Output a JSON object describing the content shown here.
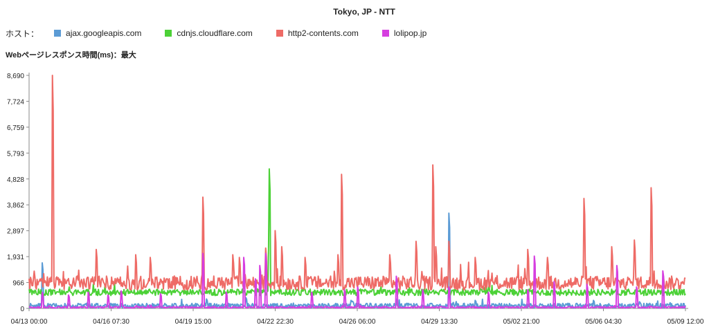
{
  "chart_data": {
    "type": "line",
    "title": "Tokyo, JP - NTT",
    "legend_prefix": "ホスト：",
    "ylabel": "Webページレスポンス時間(ms)：最大",
    "y_ticks": [
      "0",
      "966",
      "1,931",
      "2,897",
      "3,862",
      "4,828",
      "5,793",
      "6,759",
      "7,724",
      "8,690"
    ],
    "ylim": [
      0,
      8690
    ],
    "x_ticks": [
      "04/13 00:00",
      "04/16 07:30",
      "04/19 15:00",
      "04/22 22:30",
      "04/26 06:00",
      "04/29 13:30",
      "05/02 21:00",
      "05/06 04:30",
      "05/09 12:00"
    ],
    "grid": false,
    "legend_position": "top-left",
    "series": [
      {
        "name": "ajax.googleapis.com",
        "color": "#5b9bd5",
        "baseline": 100,
        "noise": 90,
        "spikes": [
          [
            0.02,
            1700
          ],
          [
            0.27,
            350
          ],
          [
            0.33,
            400
          ],
          [
            0.49,
            300
          ],
          [
            0.64,
            3550
          ],
          [
            0.68,
            300
          ],
          [
            0.86,
            300
          ],
          [
            0.93,
            250
          ]
        ]
      },
      {
        "name": "cdnjs.cloudflare.com",
        "color": "#4cd137",
        "baseline": 600,
        "noise": 120,
        "spikes": [
          [
            0.366,
            5200
          ],
          [
            0.365,
            2300
          ]
        ]
      },
      {
        "name": "http2-contents.com",
        "color": "#ee6b66",
        "baseline": 950,
        "noise": 260,
        "spikes": [
          [
            0.036,
            8690
          ],
          [
            0.102,
            2200
          ],
          [
            0.162,
            2000
          ],
          [
            0.185,
            1900
          ],
          [
            0.265,
            4150
          ],
          [
            0.31,
            2000
          ],
          [
            0.32,
            1900
          ],
          [
            0.36,
            2250
          ],
          [
            0.375,
            2900
          ],
          [
            0.385,
            2300
          ],
          [
            0.42,
            1900
          ],
          [
            0.47,
            2000
          ],
          [
            0.476,
            5000
          ],
          [
            0.55,
            2000
          ],
          [
            0.59,
            2500
          ],
          [
            0.62,
            2300
          ],
          [
            0.6155,
            5350
          ],
          [
            0.64,
            2500
          ],
          [
            0.68,
            1900
          ],
          [
            0.76,
            2200
          ],
          [
            0.79,
            1900
          ],
          [
            0.845,
            4100
          ],
          [
            0.888,
            2300
          ],
          [
            0.922,
            2550
          ],
          [
            0.948,
            4500
          ]
        ]
      },
      {
        "name": "lolipop.jp",
        "color": "#d63ee0",
        "baseline": 40,
        "noise": 30,
        "spikes": [
          [
            0.02,
            600
          ],
          [
            0.06,
            500
          ],
          [
            0.09,
            600
          ],
          [
            0.12,
            500
          ],
          [
            0.14,
            650
          ],
          [
            0.2,
            550
          ],
          [
            0.265,
            2050
          ],
          [
            0.3,
            600
          ],
          [
            0.327,
            1900
          ],
          [
            0.345,
            1100
          ],
          [
            0.352,
            1600
          ],
          [
            0.36,
            2050
          ],
          [
            0.43,
            600
          ],
          [
            0.48,
            700
          ],
          [
            0.5,
            800
          ],
          [
            0.56,
            1200
          ],
          [
            0.6,
            700
          ],
          [
            0.64,
            800
          ],
          [
            0.7,
            600
          ],
          [
            0.76,
            700
          ],
          [
            0.77,
            1950
          ],
          [
            0.8,
            1000
          ],
          [
            0.85,
            900
          ],
          [
            0.895,
            1600
          ],
          [
            0.925,
            800
          ],
          [
            0.965,
            1400
          ]
        ]
      }
    ]
  }
}
